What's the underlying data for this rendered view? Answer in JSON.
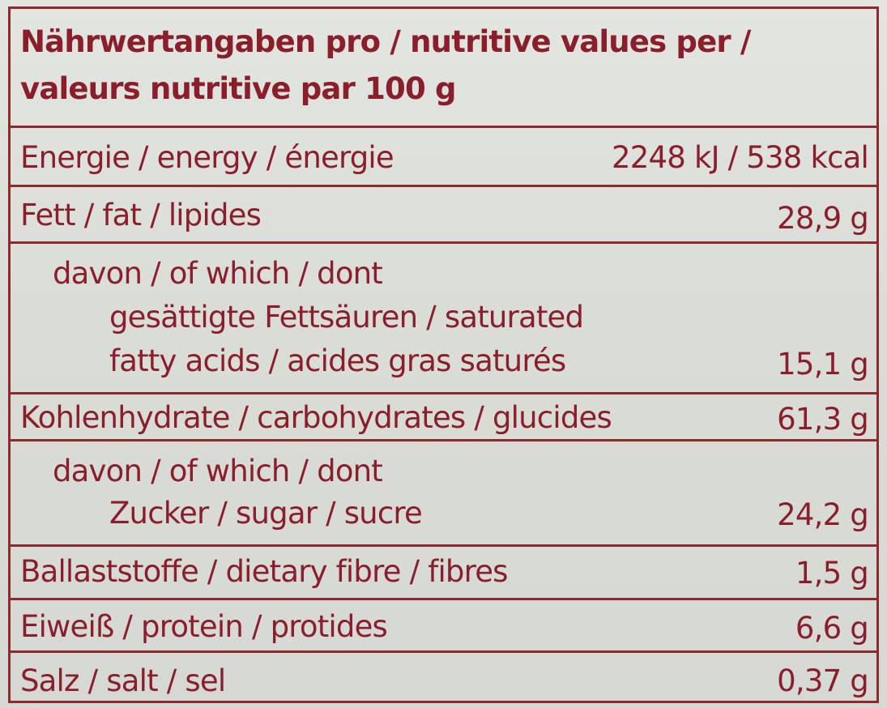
{
  "header": {
    "line1": "Nährwertangaben pro / nutritive values per /",
    "line2": "valeurs nutritive par 100 g"
  },
  "rows": {
    "energy": {
      "label": "Energie / energy / énergie",
      "value": "2248 kJ / 538 kcal"
    },
    "fat": {
      "label": "Fett / fat / lipides",
      "value": "28,9 g"
    },
    "saturates": {
      "intro": "davon / of which / dont",
      "line1": "gesättigte Fettsäuren / saturated",
      "line2": "fatty acids / acides gras saturés",
      "value": "15,1 g"
    },
    "carbohydrates": {
      "label": "Kohlenhydrate / carbohydrates / glucides",
      "value": "61,3 g"
    },
    "sugars": {
      "intro": "davon / of which / dont",
      "label": "Zucker / sugar / sucre",
      "value": "24,2 g"
    },
    "fibre": {
      "label": "Ballaststoffe / dietary fibre / fibres",
      "value": "1,5 g"
    },
    "protein": {
      "label": "Eiweiß / protein / protides",
      "value": "6,6 g"
    },
    "salt": {
      "label": "Salz / salt / sel",
      "value": "0,37 g"
    }
  },
  "colors": {
    "ink": "#8a1e2a",
    "rule": "#8e2a2e",
    "paper": "#dadcd6"
  }
}
